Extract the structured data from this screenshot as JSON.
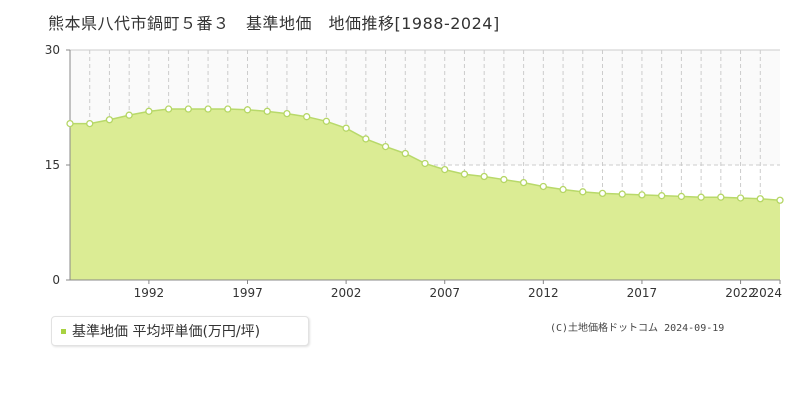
{
  "title": "熊本県八代市鍋町５番３　基準地価　地価推移[1988-2024]",
  "legend": {
    "label": "基準地価 平均坪単価(万円/坪)"
  },
  "copyright": "(C)土地価格ドットコム 2024-09-19",
  "colors": {
    "fill": "#dbec94",
    "line": "#b8d96a",
    "marker_fill": "#ffffff",
    "marker_stroke": "#b5d665",
    "legend_marker": "#a8d241",
    "grid": "#cccccc"
  },
  "chart_data": {
    "type": "area",
    "title": "熊本県八代市鍋町５番３　基準地価　地価推移[1988-2024]",
    "xlabel": "",
    "ylabel": "",
    "xlim": [
      1988,
      2024
    ],
    "ylim": [
      0,
      30
    ],
    "y_ticks": [
      0,
      15,
      30
    ],
    "x_tick_labels": [
      "1992",
      "1997",
      "2002",
      "2007",
      "2012",
      "2017",
      "2022",
      "2024"
    ],
    "grid": true,
    "series": [
      {
        "name": "基準地価 平均坪単価(万円/坪)",
        "x": [
          1988,
          1989,
          1990,
          1991,
          1992,
          1993,
          1994,
          1995,
          1996,
          1997,
          1998,
          1999,
          2000,
          2001,
          2002,
          2003,
          2004,
          2005,
          2006,
          2007,
          2008,
          2009,
          2010,
          2011,
          2012,
          2013,
          2014,
          2015,
          2016,
          2017,
          2018,
          2019,
          2020,
          2021,
          2022,
          2023,
          2024
        ],
        "values": [
          20.4,
          20.4,
          20.9,
          21.5,
          22.0,
          22.3,
          22.3,
          22.3,
          22.3,
          22.2,
          22.0,
          21.7,
          21.3,
          20.7,
          19.8,
          18.4,
          17.4,
          16.5,
          15.2,
          14.4,
          13.8,
          13.5,
          13.1,
          12.7,
          12.2,
          11.8,
          11.5,
          11.3,
          11.2,
          11.1,
          11.0,
          10.9,
          10.8,
          10.8,
          10.7,
          10.6,
          10.4
        ]
      }
    ]
  }
}
